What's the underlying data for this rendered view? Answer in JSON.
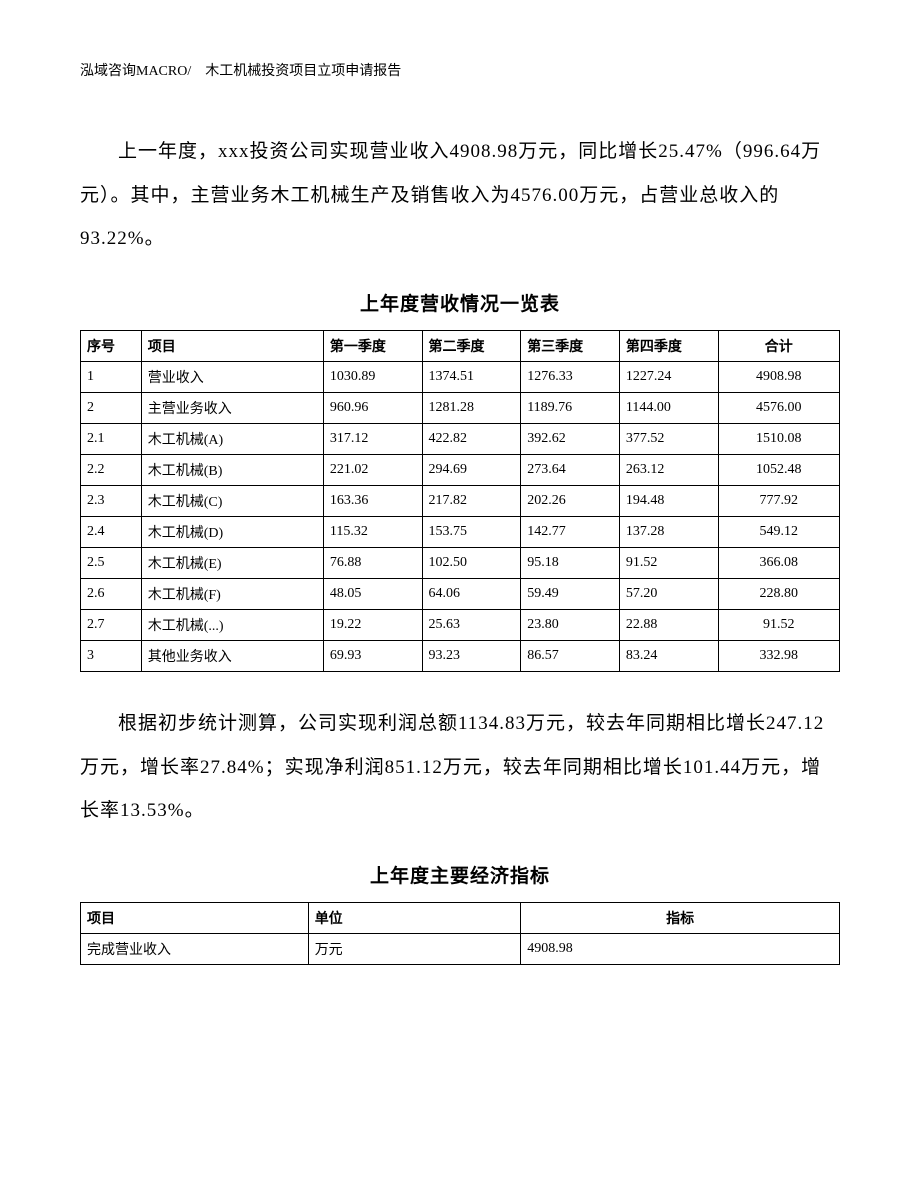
{
  "header": "泓域咨询MACRO/　木工机械投资项目立项申请报告",
  "paragraph1": "上一年度，xxx投资公司实现营业收入4908.98万元，同比增长25.47%（996.64万元）。其中，主营业务木工机械生产及销售收入为4576.00万元，占营业总收入的93.22%。",
  "table1_title": "上年度营收情况一览表",
  "table1": {
    "columns": [
      "序号",
      "项目",
      "第一季度",
      "第二季度",
      "第三季度",
      "第四季度",
      "合计"
    ],
    "rows": [
      [
        "1",
        "营业收入",
        "1030.89",
        "1374.51",
        "1276.33",
        "1227.24",
        "4908.98"
      ],
      [
        "2",
        "主营业务收入",
        "960.96",
        "1281.28",
        "1189.76",
        "1144.00",
        "4576.00"
      ],
      [
        "2.1",
        "木工机械(A)",
        "317.12",
        "422.82",
        "392.62",
        "377.52",
        "1510.08"
      ],
      [
        "2.2",
        "木工机械(B)",
        "221.02",
        "294.69",
        "273.64",
        "263.12",
        "1052.48"
      ],
      [
        "2.3",
        "木工机械(C)",
        "163.36",
        "217.82",
        "202.26",
        "194.48",
        "777.92"
      ],
      [
        "2.4",
        "木工机械(D)",
        "115.32",
        "153.75",
        "142.77",
        "137.28",
        "549.12"
      ],
      [
        "2.5",
        "木工机械(E)",
        "76.88",
        "102.50",
        "95.18",
        "91.52",
        "366.08"
      ],
      [
        "2.6",
        "木工机械(F)",
        "48.05",
        "64.06",
        "59.49",
        "57.20",
        "228.80"
      ],
      [
        "2.7",
        "木工机械(...)",
        "19.22",
        "25.63",
        "23.80",
        "22.88",
        "91.52"
      ],
      [
        "3",
        "其他业务收入",
        "69.93",
        "93.23",
        "86.57",
        "83.24",
        "332.98"
      ]
    ]
  },
  "paragraph2": "根据初步统计测算，公司实现利润总额1134.83万元，较去年同期相比增长247.12万元，增长率27.84%；实现净利润851.12万元，较去年同期相比增长101.44万元，增长率13.53%。",
  "table2_title": "上年度主要经济指标",
  "table2": {
    "columns": [
      "项目",
      "单位",
      "指标"
    ],
    "rows": [
      [
        "完成营业收入",
        "万元",
        "4908.98"
      ]
    ]
  }
}
